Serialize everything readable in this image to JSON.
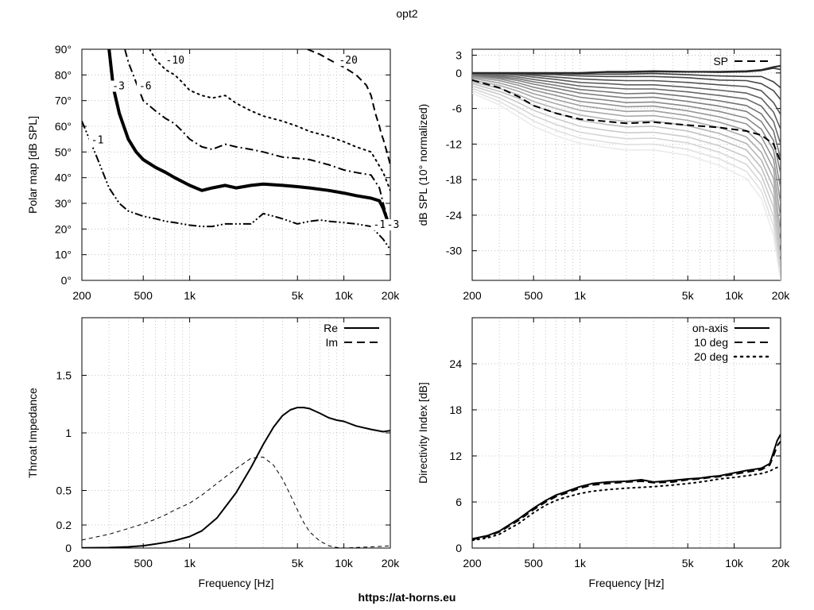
{
  "title": "opt2",
  "footer": "https://at-horns.eu",
  "chart_data": [
    {
      "type": "contour",
      "ylabel": "Polar map [dB SPL]",
      "xscale": "log",
      "xlim": [
        200,
        20000
      ],
      "ylim": [
        0,
        90
      ],
      "xticks": [
        200,
        500,
        1000,
        5000,
        10000,
        20000
      ],
      "xtick_labels": [
        "200",
        "500",
        "1k",
        "5k",
        "10k",
        "20k"
      ],
      "yticks": [
        0,
        10,
        20,
        30,
        40,
        50,
        60,
        70,
        80,
        90
      ],
      "ytick_labels": [
        "0°",
        "10°",
        "20°",
        "30°",
        "40°",
        "50°",
        "60°",
        "70°",
        "80°",
        "90°"
      ],
      "grid": true,
      "series": [
        {
          "name": "-1",
          "style": "dash-dot-dot",
          "width": 2,
          "x": [
            200,
            250,
            300,
            350,
            400,
            500,
            600,
            700,
            800,
            900,
            1000,
            1200,
            1400,
            1700,
            2000,
            2500,
            3000,
            3500,
            4000,
            5000,
            6000,
            7000,
            8000,
            10000,
            12000,
            15000,
            18000,
            20000
          ],
          "y": [
            62,
            48,
            36,
            30,
            27,
            25,
            24,
            23,
            22.5,
            22,
            21.5,
            21,
            21,
            22,
            22,
            22,
            26,
            25,
            24,
            22,
            23,
            23.5,
            23,
            22.5,
            22,
            21,
            16,
            12
          ]
        },
        {
          "name": "-3",
          "style": "solid",
          "width": 4,
          "x": [
            300,
            320,
            350,
            400,
            450,
            500,
            600,
            700,
            800,
            1000,
            1200,
            1400,
            1700,
            2000,
            2500,
            3000,
            4000,
            5000,
            6000,
            8000,
            10000,
            12000,
            15000,
            17000,
            18000,
            19000
          ],
          "y": [
            90,
            75,
            65,
            55,
            50,
            47,
            44,
            42,
            40,
            37,
            35,
            36,
            37,
            36,
            37,
            37.5,
            37,
            36.5,
            36,
            35,
            34,
            33,
            32,
            31,
            28,
            24
          ]
        },
        {
          "name": "-6",
          "style": "dash-dot",
          "width": 2,
          "x": [
            380,
            400,
            450,
            500,
            600,
            700,
            800,
            900,
            1000,
            1200,
            1400,
            1700,
            2000,
            2500,
            3000,
            4000,
            5000,
            6000,
            8000,
            10000,
            12000,
            15000,
            17000,
            18000,
            19000,
            20000
          ],
          "y": [
            90,
            85,
            77,
            70,
            66,
            63,
            61,
            58,
            55,
            52,
            51,
            53,
            52,
            51,
            50,
            48,
            47.5,
            47,
            45,
            43,
            42,
            41,
            36,
            30,
            25,
            20
          ]
        },
        {
          "name": "-10",
          "style": "dotted",
          "width": 2,
          "x": [
            550,
            600,
            700,
            800,
            900,
            1000,
            1200,
            1400,
            1700,
            2000,
            2500,
            3000,
            4000,
            5000,
            6000,
            8000,
            10000,
            12000,
            15000,
            18000,
            20000
          ],
          "y": [
            90,
            86,
            82,
            80,
            77,
            74,
            72,
            71,
            72,
            69,
            66,
            64,
            62,
            60,
            58,
            56,
            54,
            52,
            50,
            42,
            35
          ]
        },
        {
          "name": "-20",
          "style": "dashed",
          "width": 2,
          "x": [
            5800,
            7000,
            8000,
            10000,
            12000,
            14000,
            15000,
            16000,
            17000,
            17500,
            18000,
            19000,
            20000
          ],
          "y": [
            90,
            88,
            86,
            83,
            80,
            76,
            72,
            65,
            60,
            57,
            55,
            50,
            45
          ]
        }
      ],
      "contour_labels": [
        {
          "text": "-1",
          "x": 230,
          "y": 54
        },
        {
          "text": "-3",
          "x": 315,
          "y": 75
        },
        {
          "text": "-6",
          "x": 470,
          "y": 75
        },
        {
          "text": "-10",
          "x": 700,
          "y": 85
        },
        {
          "text": "-20",
          "x": 9300,
          "y": 85
        },
        {
          "text": "-1",
          "x": 15500,
          "y": 21
        },
        {
          "text": "-3",
          "x": 19000,
          "y": 21
        }
      ]
    },
    {
      "type": "line",
      "ylabel": "dB SPL (10° normalized)",
      "xscale": "log",
      "xlim": [
        200,
        20000
      ],
      "ylim": [
        -35,
        4
      ],
      "xticks": [
        200,
        500,
        1000,
        5000,
        10000,
        20000
      ],
      "xtick_labels": [
        "200",
        "500",
        "1k",
        "5k",
        "10k",
        "20k"
      ],
      "yticks": [
        3,
        0,
        -6,
        -12,
        -18,
        -24,
        -30
      ],
      "ytick_labels": [
        "3",
        "0",
        "-6",
        "-12",
        "-18",
        "-24",
        "-30"
      ],
      "grid": true,
      "legend": "top-right",
      "legend_entries": [
        "SP"
      ],
      "x": [
        200,
        300,
        400,
        500,
        700,
        1000,
        1500,
        2000,
        3000,
        5000,
        8000,
        12000,
        15000,
        18000,
        20000
      ],
      "series": [
        {
          "name": "SP",
          "style": "dashed",
          "values": [
            -1.2,
            -2.5,
            -4,
            -5.5,
            -6.8,
            -7.8,
            -8.2,
            -8.5,
            -8.3,
            -8.8,
            -9.2,
            -9.8,
            -10.5,
            -12,
            -15
          ]
        }
      ],
      "family_angles": [
        0,
        5,
        10,
        15,
        20,
        25,
        30,
        35,
        40,
        45,
        50,
        55,
        60,
        65,
        70,
        75,
        80,
        85,
        90
      ],
      "family_curves": [
        [
          0,
          0,
          0,
          0,
          0,
          0,
          0.2,
          0.2,
          0.3,
          0.2,
          0.2,
          0.3,
          0.5,
          1,
          1.2
        ],
        [
          0,
          0,
          0,
          0,
          0,
          0,
          0.1,
          0.1,
          0.2,
          0.2,
          0.1,
          0.2,
          0.4,
          0.8,
          0.6
        ],
        [
          0,
          0,
          0,
          -0.1,
          -0.1,
          -0.2,
          -0.2,
          -0.2,
          -0.1,
          -0.3,
          -0.5,
          -0.6,
          -0.6,
          -1.5,
          -2.5
        ],
        [
          0,
          0,
          -0.1,
          -0.2,
          -0.3,
          -0.5,
          -0.6,
          -0.6,
          -0.6,
          -0.8,
          -1.2,
          -1.3,
          -1.8,
          -3,
          -4.5
        ],
        [
          -0.1,
          -0.1,
          -0.2,
          -0.4,
          -0.7,
          -1.0,
          -1.2,
          -1.3,
          -1.3,
          -1.6,
          -2.0,
          -2.3,
          -3,
          -5,
          -7
        ],
        [
          -0.1,
          -0.2,
          -0.4,
          -0.7,
          -1.1,
          -1.6,
          -1.8,
          -2.0,
          -2.0,
          -2.4,
          -2.9,
          -3.4,
          -4.3,
          -6.6,
          -9.5
        ],
        [
          -0.2,
          -0.4,
          -0.7,
          -1.1,
          -1.6,
          -2.2,
          -2.5,
          -2.7,
          -2.7,
          -3.2,
          -3.8,
          -4.4,
          -5.6,
          -8.2,
          -12
        ],
        [
          -0.3,
          -0.6,
          -1.0,
          -1.5,
          -2.1,
          -2.8,
          -3.2,
          -3.5,
          -3.4,
          -4.0,
          -4.7,
          -5.5,
          -6.9,
          -9.8,
          -14.5
        ],
        [
          -0.4,
          -0.8,
          -1.3,
          -1.9,
          -2.6,
          -3.4,
          -3.9,
          -4.2,
          -4.1,
          -4.8,
          -5.6,
          -6.5,
          -8.2,
          -11.4,
          -17
        ],
        [
          -0.5,
          -1.0,
          -1.7,
          -2.4,
          -3.2,
          -4.1,
          -4.6,
          -5.0,
          -4.9,
          -5.6,
          -6.5,
          -7.6,
          -9.5,
          -13,
          -19.5
        ],
        [
          -0.7,
          -1.3,
          -2.1,
          -2.9,
          -3.8,
          -4.8,
          -5.3,
          -5.7,
          -5.6,
          -6.4,
          -7.4,
          -8.6,
          -10.8,
          -14.6,
          -22
        ],
        [
          -0.9,
          -1.7,
          -2.6,
          -3.5,
          -4.5,
          -5.5,
          -6.1,
          -6.5,
          -6.4,
          -7.2,
          -8.3,
          -9.7,
          -12.1,
          -16.2,
          -24.5
        ],
        [
          -1.2,
          -2.1,
          -3.1,
          -4.1,
          -5.2,
          -6.3,
          -6.9,
          -7.3,
          -7.2,
          -8.0,
          -9.2,
          -10.8,
          -13.4,
          -17.8,
          -27
        ],
        [
          -1.5,
          -2.6,
          -3.7,
          -4.8,
          -6.0,
          -7.1,
          -7.8,
          -8.2,
          -8.1,
          -8.9,
          -10.2,
          -11.9,
          -14.7,
          -19.4,
          -29
        ],
        [
          -1.8,
          -3.1,
          -4.3,
          -5.5,
          -6.8,
          -8.0,
          -8.7,
          -9.1,
          -9.0,
          -9.8,
          -11.2,
          -13.0,
          -16.0,
          -21.0,
          -31
        ],
        [
          -2.2,
          -3.6,
          -5.0,
          -6.3,
          -7.7,
          -9.0,
          -9.7,
          -10.1,
          -10.0,
          -10.8,
          -12.3,
          -14.2,
          -17.3,
          -22.6,
          -32.5
        ],
        [
          -2.6,
          -4.2,
          -5.8,
          -7.2,
          -8.7,
          -10.0,
          -10.7,
          -11.1,
          -11.0,
          -11.8,
          -13.4,
          -15.4,
          -18.6,
          -24.2,
          -33.5
        ],
        [
          -3.0,
          -4.8,
          -6.6,
          -8.1,
          -9.7,
          -11.0,
          -11.7,
          -12.1,
          -12.0,
          -12.9,
          -14.5,
          -16.6,
          -19.9,
          -25.8,
          -34.5
        ],
        [
          -3.4,
          -5.4,
          -7.4,
          -9.0,
          -10.6,
          -11.9,
          -12.6,
          -13.0,
          -13.0,
          -13.9,
          -15.6,
          -17.8,
          -21.2,
          -27.4,
          -35
        ]
      ]
    },
    {
      "type": "line",
      "xlabel": "Frequency [Hz]",
      "ylabel": "Throat Impedance",
      "xscale": "log",
      "xlim": [
        200,
        20000
      ],
      "ylim": [
        0,
        2
      ],
      "xticks": [
        200,
        500,
        1000,
        5000,
        10000,
        20000
      ],
      "xtick_labels": [
        "200",
        "500",
        "1k",
        "5k",
        "10k",
        "20k"
      ],
      "yticks": [
        0,
        0.2,
        0.5,
        1,
        1.5
      ],
      "ytick_labels": [
        "0",
        "0.2",
        "0.5",
        "1",
        "1.5"
      ],
      "grid": true,
      "legend": "top-right",
      "x": [
        200,
        300,
        400,
        500,
        600,
        700,
        800,
        1000,
        1200,
        1500,
        2000,
        2500,
        3000,
        3500,
        4000,
        4500,
        5000,
        5500,
        6000,
        7000,
        8000,
        9000,
        10000,
        12000,
        15000,
        18000,
        20000
      ],
      "series": [
        {
          "name": "Re",
          "style": "solid",
          "values": [
            0.002,
            0.004,
            0.01,
            0.02,
            0.035,
            0.05,
            0.065,
            0.1,
            0.15,
            0.26,
            0.48,
            0.7,
            0.9,
            1.05,
            1.15,
            1.2,
            1.22,
            1.22,
            1.21,
            1.17,
            1.13,
            1.11,
            1.1,
            1.06,
            1.03,
            1.01,
            1.02
          ]
        },
        {
          "name": "Im",
          "style": "dashed",
          "values": [
            0.07,
            0.12,
            0.17,
            0.21,
            0.25,
            0.29,
            0.33,
            0.39,
            0.46,
            0.56,
            0.69,
            0.78,
            0.79,
            0.72,
            0.6,
            0.46,
            0.33,
            0.22,
            0.14,
            0.06,
            0.02,
            0.005,
            0.0,
            0.005,
            0.01,
            0.015,
            0.02
          ]
        }
      ]
    },
    {
      "type": "line",
      "xlabel": "Frequency [Hz]",
      "ylabel": "Directivity Index [dB]",
      "xscale": "log",
      "xlim": [
        200,
        20000
      ],
      "ylim": [
        0,
        30
      ],
      "xticks": [
        200,
        500,
        1000,
        5000,
        10000,
        20000
      ],
      "xtick_labels": [
        "200",
        "500",
        "1k",
        "5k",
        "10k",
        "20k"
      ],
      "yticks": [
        0,
        6,
        12,
        18,
        24
      ],
      "ytick_labels": [
        "0",
        "6",
        "12",
        "18",
        "24"
      ],
      "grid": true,
      "legend": "top-right",
      "x": [
        200,
        250,
        300,
        400,
        500,
        600,
        700,
        800,
        1000,
        1200,
        1500,
        2000,
        2500,
        3000,
        4000,
        5000,
        6000,
        7000,
        8000,
        10000,
        12000,
        15000,
        17000,
        18000,
        19000,
        20000
      ],
      "series": [
        {
          "name": "on-axis",
          "style": "solid",
          "values": [
            1.2,
            1.6,
            2.2,
            3.8,
            5.2,
            6.2,
            6.9,
            7.3,
            8.0,
            8.4,
            8.6,
            8.7,
            8.9,
            8.6,
            8.8,
            9.0,
            9.1,
            9.3,
            9.4,
            9.8,
            10.1,
            10.4,
            11.0,
            12.5,
            14.0,
            14.8
          ]
        },
        {
          "name": "10 deg",
          "style": "dashed",
          "values": [
            1.1,
            1.5,
            2.1,
            3.6,
            5.0,
            6.0,
            6.7,
            7.1,
            7.8,
            8.2,
            8.4,
            8.6,
            8.7,
            8.5,
            8.6,
            8.9,
            9.0,
            9.2,
            9.3,
            9.6,
            9.9,
            10.2,
            10.8,
            12.0,
            13.3,
            13.9
          ]
        },
        {
          "name": "20 deg",
          "style": "dotted",
          "values": [
            1.0,
            1.3,
            1.8,
            3.2,
            4.6,
            5.6,
            6.2,
            6.6,
            7.1,
            7.4,
            7.6,
            7.8,
            7.9,
            8.0,
            8.2,
            8.4,
            8.6,
            8.8,
            9.0,
            9.2,
            9.4,
            9.7,
            10.0,
            10.3,
            10.5,
            10.6
          ]
        }
      ]
    }
  ]
}
